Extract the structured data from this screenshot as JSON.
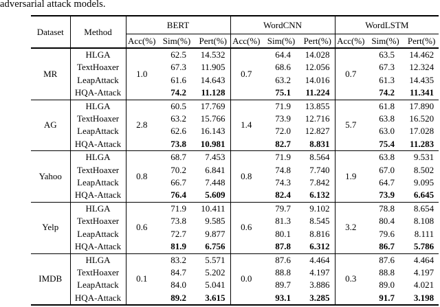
{
  "caption_fragment": "adversarial attack models.",
  "colors": {
    "text": "#000000",
    "background": "#ffffff",
    "rules": "#000000"
  },
  "table": {
    "header": {
      "dataset": "Dataset",
      "method": "Method",
      "groups": [
        "BERT",
        "WordCNN",
        "WordLSTM"
      ],
      "subcols": [
        "Acc(%)",
        "Sim(%)",
        "Pert(%)"
      ]
    },
    "blocks": [
      {
        "dataset": "MR",
        "acc": [
          "1.0",
          "0.7",
          "0.7"
        ],
        "rows": [
          {
            "method": "HLGA",
            "values": [
              "62.5",
              "14.532",
              "64.4",
              "14.028",
              "63.5",
              "14.462"
            ],
            "bold": false
          },
          {
            "method": "TextHoaxer",
            "values": [
              "67.3",
              "11.905",
              "68.6",
              "12.056",
              "67.3",
              "12.324"
            ],
            "bold": false
          },
          {
            "method": "LeapAttack",
            "values": [
              "61.6",
              "14.643",
              "63.2",
              "14.016",
              "61.3",
              "14.435"
            ],
            "bold": false
          },
          {
            "method": "HQA-Attack",
            "values": [
              "74.2",
              "11.128",
              "75.1",
              "11.224",
              "74.2",
              "11.341"
            ],
            "bold": true
          }
        ]
      },
      {
        "dataset": "AG",
        "acc": [
          "2.8",
          "1.4",
          "5.7"
        ],
        "rows": [
          {
            "method": "HLGA",
            "values": [
              "60.5",
              "17.769",
              "71.9",
              "13.855",
              "61.8",
              "17.890"
            ],
            "bold": false
          },
          {
            "method": "TextHoaxer",
            "values": [
              "63.2",
              "15.766",
              "73.9",
              "12.716",
              "63.8",
              "16.520"
            ],
            "bold": false
          },
          {
            "method": "LeapAttack",
            "values": [
              "62.6",
              "16.143",
              "72.0",
              "12.827",
              "63.0",
              "17.028"
            ],
            "bold": false
          },
          {
            "method": "HQA-Attack",
            "values": [
              "73.8",
              "10.981",
              "82.7",
              "8.831",
              "75.4",
              "11.283"
            ],
            "bold": true
          }
        ]
      },
      {
        "dataset": "Yahoo",
        "acc": [
          "0.8",
          "0.8",
          "1.9"
        ],
        "rows": [
          {
            "method": "HLGA",
            "values": [
              "68.7",
              "7.453",
              "71.9",
              "8.564",
              "63.8",
              "9.531"
            ],
            "bold": false
          },
          {
            "method": "TextHoaxer",
            "values": [
              "70.2",
              "6.841",
              "74.8",
              "7.740",
              "67.0",
              "8.502"
            ],
            "bold": false
          },
          {
            "method": "LeapAttack",
            "values": [
              "66.7",
              "7.448",
              "74.3",
              "7.842",
              "64.7",
              "9.095"
            ],
            "bold": false
          },
          {
            "method": "HQA-Attack",
            "values": [
              "76.4",
              "5.609",
              "82.4",
              "6.132",
              "73.9",
              "6.645"
            ],
            "bold": true
          }
        ]
      },
      {
        "dataset": "Yelp",
        "acc": [
          "0.6",
          "0.6",
          "3.2"
        ],
        "rows": [
          {
            "method": "HLGA",
            "values": [
              "71.9",
              "10.411",
              "79.7",
              "9.102",
              "78.8",
              "8.654"
            ],
            "bold": false
          },
          {
            "method": "TextHoaxer",
            "values": [
              "73.8",
              "9.585",
              "81.3",
              "8.545",
              "80.4",
              "8.108"
            ],
            "bold": false
          },
          {
            "method": "LeapAttack",
            "values": [
              "72.7",
              "9.877",
              "80.1",
              "8.816",
              "79.6",
              "8.111"
            ],
            "bold": false
          },
          {
            "method": "HQA-Attack",
            "values": [
              "81.9",
              "6.756",
              "87.8",
              "6.312",
              "86.7",
              "5.786"
            ],
            "bold": true
          }
        ]
      },
      {
        "dataset": "IMDB",
        "acc": [
          "0.1",
          "0.0",
          "0.3"
        ],
        "rows": [
          {
            "method": "HLGA",
            "values": [
              "83.2",
              "5.571",
              "87.6",
              "4.464",
              "87.6",
              "4.464"
            ],
            "bold": false
          },
          {
            "method": "TextHoaxer",
            "values": [
              "84.7",
              "5.202",
              "88.8",
              "4.197",
              "88.8",
              "4.197"
            ],
            "bold": false
          },
          {
            "method": "LeapAttack",
            "values": [
              "84.0",
              "5.041",
              "89.7",
              "3.886",
              "89.0",
              "4.021"
            ],
            "bold": false
          },
          {
            "method": "HQA-Attack",
            "values": [
              "89.2",
              "3.615",
              "93.1",
              "3.285",
              "91.7",
              "3.198"
            ],
            "bold": true
          }
        ]
      }
    ]
  }
}
